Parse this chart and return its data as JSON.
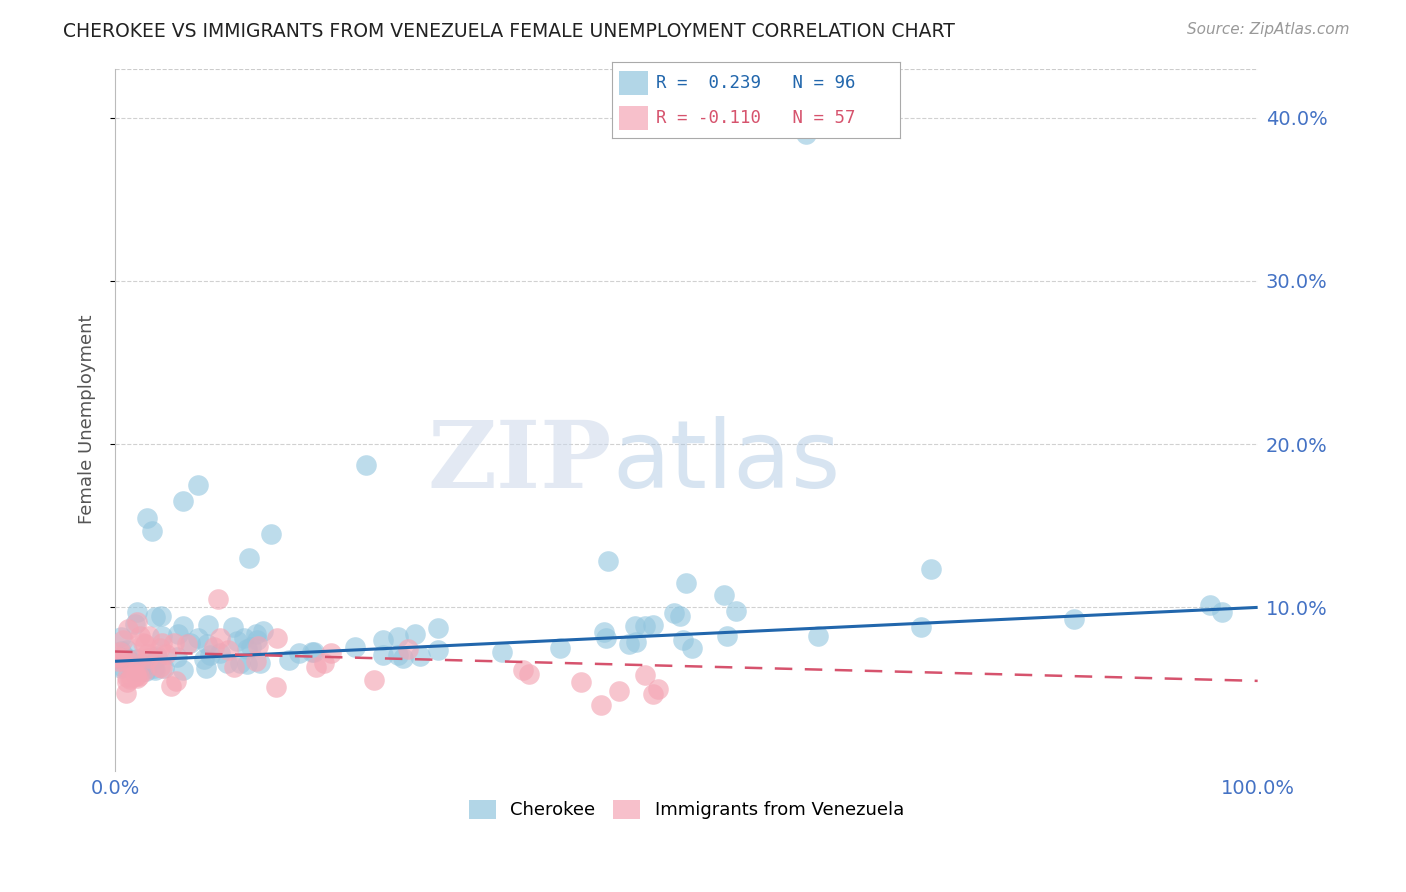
{
  "title": "CHEROKEE VS IMMIGRANTS FROM VENEZUELA FEMALE UNEMPLOYMENT CORRELATION CHART",
  "source": "Source: ZipAtlas.com",
  "ylabel": "Female Unemployment",
  "xlabel_ticks": [
    "0.0%",
    "100.0%"
  ],
  "ytick_labels": [
    "10.0%",
    "20.0%",
    "30.0%",
    "40.0%"
  ],
  "ytick_values": [
    0.1,
    0.2,
    0.3,
    0.4
  ],
  "xlim": [
    0.0,
    1.0
  ],
  "ylim": [
    0.0,
    0.43
  ],
  "background_color": "#ffffff",
  "blue_color": "#92c5de",
  "pink_color": "#f4a6b5",
  "blue_line_color": "#2166ac",
  "pink_line_color": "#d6536d",
  "grid_color": "#cccccc",
  "title_color": "#222222",
  "axis_label_color": "#555555",
  "tick_label_color": "#4472c4",
  "bottom_legend_blue": "Cherokee",
  "bottom_legend_pink": "Immigrants from Venezuela",
  "legend1_text": "R =  0.239   N = 96",
  "legend2_text": "R = -0.110   N = 57"
}
